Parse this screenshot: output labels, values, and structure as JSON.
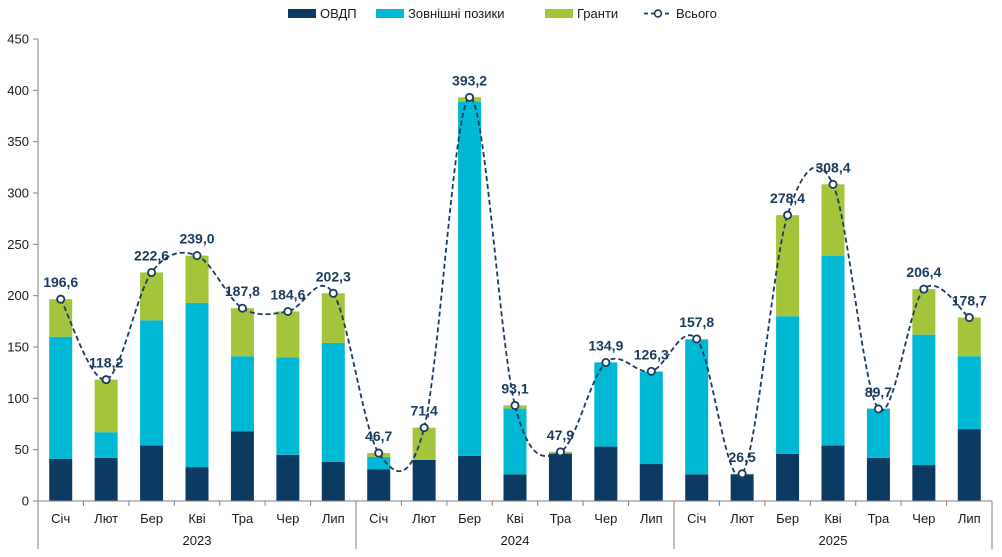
{
  "chart_data": {
    "type": "bar",
    "stacked": true,
    "ylim": [
      0,
      450
    ],
    "yticks": [
      0,
      50,
      100,
      150,
      200,
      250,
      300,
      350,
      400,
      450
    ],
    "grid": false,
    "legend_position": "top",
    "groups": [
      {
        "label": "2023",
        "categories": [
          "Січ",
          "Лют",
          "Бер",
          "Кві",
          "Тра",
          "Чер",
          "Лип"
        ]
      },
      {
        "label": "2024",
        "categories": [
          "Січ",
          "Лют",
          "Бер",
          "Кві",
          "Тра",
          "Чер",
          "Лип"
        ]
      },
      {
        "label": "2025",
        "categories": [
          "Січ",
          "Лют",
          "Бер",
          "Кві",
          "Тра",
          "Чер",
          "Лип"
        ]
      }
    ],
    "series": [
      {
        "name": "ОВДП",
        "color": "#0b3a63",
        "kind": "bar",
        "values": [
          41,
          42,
          54,
          33,
          68,
          45,
          38,
          31,
          40,
          44,
          26,
          46,
          53,
          36,
          26,
          26,
          46,
          54,
          42,
          35,
          70
        ]
      },
      {
        "name": "Зовнішні позики",
        "color": "#00b8d4",
        "kind": "bar",
        "values": [
          119,
          25,
          122,
          160,
          73,
          95,
          116,
          12,
          0,
          345,
          64,
          1,
          82,
          90,
          131,
          0,
          134,
          185,
          48,
          127,
          71
        ]
      },
      {
        "name": "Гранти",
        "color": "#a4c43c",
        "kind": "bar",
        "values": [
          36.6,
          51.2,
          46.6,
          46,
          46.8,
          44.6,
          48.3,
          3.7,
          31.4,
          4.2,
          3.1,
          0.9,
          0,
          0.3,
          0.8,
          0.5,
          98.4,
          69.4,
          0,
          44.4,
          37.7
        ]
      },
      {
        "name": "Всього",
        "color": "#1b3a5e",
        "kind": "line",
        "values": [
          196.6,
          118.2,
          222.6,
          239.0,
          187.8,
          184.6,
          202.3,
          46.7,
          71.4,
          393.2,
          93.1,
          47.9,
          134.9,
          126.3,
          157.8,
          26.5,
          278.4,
          308.4,
          89.7,
          206.4,
          178.7
        ],
        "labels": [
          "196,6",
          "118,2",
          "222,6",
          "239,0",
          "187,8",
          "184,6",
          "202,3",
          "46,7",
          "71,4",
          "393,2",
          "93,1",
          "47,9",
          "134,9",
          "126,3",
          "157,8",
          "26,5",
          "278,4",
          "308,4",
          "89,7",
          "206,4",
          "178,7"
        ]
      }
    ]
  }
}
